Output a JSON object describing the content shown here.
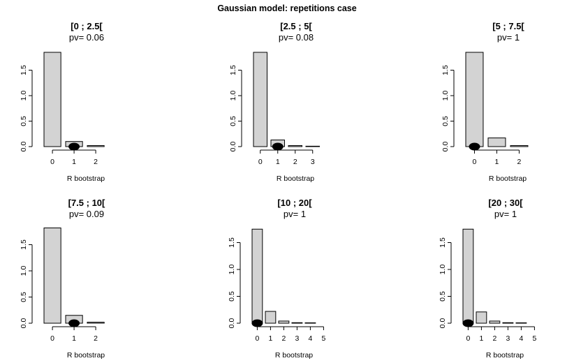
{
  "title": "Gaussian model: repetitions case",
  "chart_data": [
    {
      "type": "bar",
      "title": "[0 ; 2.5[",
      "subtitle": "pv= 0.06",
      "xlabel": "R bootstrap",
      "ylabel": "",
      "categories": [
        0,
        1,
        2
      ],
      "values": [
        1.85,
        0.1,
        0.02
      ],
      "x_ticks": [
        0,
        1,
        2
      ],
      "y_ticks": [
        0.0,
        0.5,
        1.0,
        1.5
      ],
      "ylim": [
        0,
        1.85
      ],
      "observed": 1
    },
    {
      "type": "bar",
      "title": "[2.5 ; 5[",
      "subtitle": "pv= 0.08",
      "xlabel": "R bootstrap",
      "ylabel": "",
      "categories": [
        0,
        1,
        2,
        3
      ],
      "values": [
        1.85,
        0.13,
        0.02,
        0.005
      ],
      "x_ticks": [
        0,
        1,
        2,
        3
      ],
      "y_ticks": [
        0.0,
        0.5,
        1.0,
        1.5
      ],
      "ylim": [
        0,
        1.85
      ],
      "observed": 1
    },
    {
      "type": "bar",
      "title": "[5 ; 7.5[",
      "subtitle": "pv= 1",
      "xlabel": "R bootstrap",
      "ylabel": "",
      "categories": [
        0,
        1,
        2
      ],
      "values": [
        1.85,
        0.17,
        0.02
      ],
      "x_ticks": [
        0,
        1,
        2
      ],
      "y_ticks": [
        0.0,
        0.5,
        1.0,
        1.5
      ],
      "ylim": [
        0,
        1.85
      ],
      "observed": 0
    },
    {
      "type": "bar",
      "title": "[7.5 ; 10[",
      "subtitle": "pv= 0.09",
      "xlabel": "R bootstrap",
      "ylabel": "",
      "categories": [
        0,
        1,
        2
      ],
      "values": [
        1.82,
        0.15,
        0.02
      ],
      "x_ticks": [
        0,
        1,
        2
      ],
      "y_ticks": [
        0.0,
        0.5,
        1.0,
        1.5
      ],
      "ylim": [
        0,
        1.82
      ],
      "observed": 1
    },
    {
      "type": "bar",
      "title": "[10 ; 20[",
      "subtitle": "pv= 1",
      "xlabel": "R bootstrap",
      "ylabel": "",
      "categories": [
        0,
        1,
        2,
        3,
        4
      ],
      "values": [
        1.75,
        0.22,
        0.04,
        0.01,
        0.005
      ],
      "x_ticks": [
        0,
        1,
        2,
        3,
        4,
        5
      ],
      "y_ticks": [
        0.0,
        0.5,
        1.0,
        1.5
      ],
      "ylim": [
        0,
        1.75
      ],
      "observed": 0
    },
    {
      "type": "bar",
      "title": "[20 ; 30[",
      "subtitle": "pv= 1",
      "xlabel": "R bootstrap",
      "ylabel": "",
      "categories": [
        0,
        1,
        2,
        3,
        4
      ],
      "values": [
        1.75,
        0.21,
        0.04,
        0.01,
        0.005
      ],
      "x_ticks": [
        0,
        1,
        2,
        3,
        4,
        5
      ],
      "y_ticks": [
        0.0,
        0.5,
        1.0,
        1.5
      ],
      "ylim": [
        0,
        1.75
      ],
      "observed": 0
    }
  ]
}
